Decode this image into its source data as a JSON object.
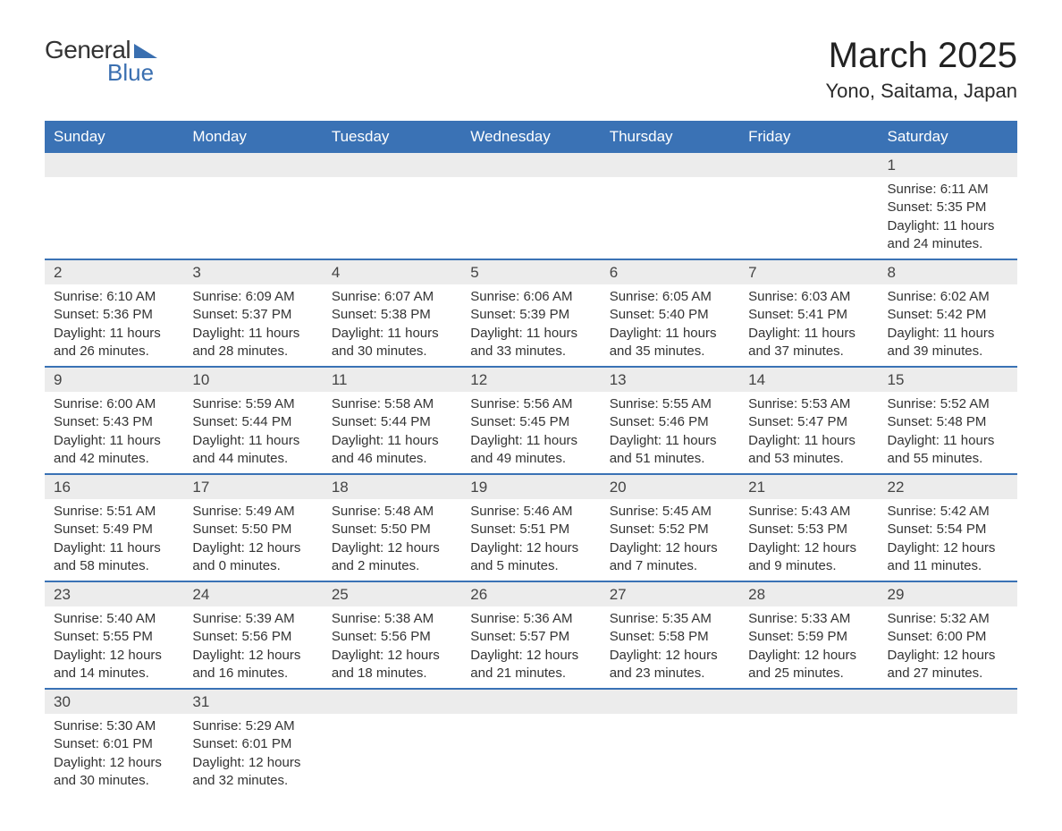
{
  "logo": {
    "line1": "General",
    "line2": "Blue"
  },
  "title": "March 2025",
  "location": "Yono, Saitama, Japan",
  "day_headers": [
    "Sunday",
    "Monday",
    "Tuesday",
    "Wednesday",
    "Thursday",
    "Friday",
    "Saturday"
  ],
  "colors": {
    "header_bg": "#3a72b5",
    "header_text": "#ffffff",
    "day_number_bg": "#ececec",
    "row_border": "#3a72b5",
    "logo_accent": "#3a6fb0",
    "body_text": "#333333"
  },
  "weeks": [
    [
      {
        "n": "",
        "lines": []
      },
      {
        "n": "",
        "lines": []
      },
      {
        "n": "",
        "lines": []
      },
      {
        "n": "",
        "lines": []
      },
      {
        "n": "",
        "lines": []
      },
      {
        "n": "",
        "lines": []
      },
      {
        "n": "1",
        "lines": [
          "Sunrise: 6:11 AM",
          "Sunset: 5:35 PM",
          "Daylight: 11 hours and 24 minutes."
        ]
      }
    ],
    [
      {
        "n": "2",
        "lines": [
          "Sunrise: 6:10 AM",
          "Sunset: 5:36 PM",
          "Daylight: 11 hours and 26 minutes."
        ]
      },
      {
        "n": "3",
        "lines": [
          "Sunrise: 6:09 AM",
          "Sunset: 5:37 PM",
          "Daylight: 11 hours and 28 minutes."
        ]
      },
      {
        "n": "4",
        "lines": [
          "Sunrise: 6:07 AM",
          "Sunset: 5:38 PM",
          "Daylight: 11 hours and 30 minutes."
        ]
      },
      {
        "n": "5",
        "lines": [
          "Sunrise: 6:06 AM",
          "Sunset: 5:39 PM",
          "Daylight: 11 hours and 33 minutes."
        ]
      },
      {
        "n": "6",
        "lines": [
          "Sunrise: 6:05 AM",
          "Sunset: 5:40 PM",
          "Daylight: 11 hours and 35 minutes."
        ]
      },
      {
        "n": "7",
        "lines": [
          "Sunrise: 6:03 AM",
          "Sunset: 5:41 PM",
          "Daylight: 11 hours and 37 minutes."
        ]
      },
      {
        "n": "8",
        "lines": [
          "Sunrise: 6:02 AM",
          "Sunset: 5:42 PM",
          "Daylight: 11 hours and 39 minutes."
        ]
      }
    ],
    [
      {
        "n": "9",
        "lines": [
          "Sunrise: 6:00 AM",
          "Sunset: 5:43 PM",
          "Daylight: 11 hours and 42 minutes."
        ]
      },
      {
        "n": "10",
        "lines": [
          "Sunrise: 5:59 AM",
          "Sunset: 5:44 PM",
          "Daylight: 11 hours and 44 minutes."
        ]
      },
      {
        "n": "11",
        "lines": [
          "Sunrise: 5:58 AM",
          "Sunset: 5:44 PM",
          "Daylight: 11 hours and 46 minutes."
        ]
      },
      {
        "n": "12",
        "lines": [
          "Sunrise: 5:56 AM",
          "Sunset: 5:45 PM",
          "Daylight: 11 hours and 49 minutes."
        ]
      },
      {
        "n": "13",
        "lines": [
          "Sunrise: 5:55 AM",
          "Sunset: 5:46 PM",
          "Daylight: 11 hours and 51 minutes."
        ]
      },
      {
        "n": "14",
        "lines": [
          "Sunrise: 5:53 AM",
          "Sunset: 5:47 PM",
          "Daylight: 11 hours and 53 minutes."
        ]
      },
      {
        "n": "15",
        "lines": [
          "Sunrise: 5:52 AM",
          "Sunset: 5:48 PM",
          "Daylight: 11 hours and 55 minutes."
        ]
      }
    ],
    [
      {
        "n": "16",
        "lines": [
          "Sunrise: 5:51 AM",
          "Sunset: 5:49 PM",
          "Daylight: 11 hours and 58 minutes."
        ]
      },
      {
        "n": "17",
        "lines": [
          "Sunrise: 5:49 AM",
          "Sunset: 5:50 PM",
          "Daylight: 12 hours and 0 minutes."
        ]
      },
      {
        "n": "18",
        "lines": [
          "Sunrise: 5:48 AM",
          "Sunset: 5:50 PM",
          "Daylight: 12 hours and 2 minutes."
        ]
      },
      {
        "n": "19",
        "lines": [
          "Sunrise: 5:46 AM",
          "Sunset: 5:51 PM",
          "Daylight: 12 hours and 5 minutes."
        ]
      },
      {
        "n": "20",
        "lines": [
          "Sunrise: 5:45 AM",
          "Sunset: 5:52 PM",
          "Daylight: 12 hours and 7 minutes."
        ]
      },
      {
        "n": "21",
        "lines": [
          "Sunrise: 5:43 AM",
          "Sunset: 5:53 PM",
          "Daylight: 12 hours and 9 minutes."
        ]
      },
      {
        "n": "22",
        "lines": [
          "Sunrise: 5:42 AM",
          "Sunset: 5:54 PM",
          "Daylight: 12 hours and 11 minutes."
        ]
      }
    ],
    [
      {
        "n": "23",
        "lines": [
          "Sunrise: 5:40 AM",
          "Sunset: 5:55 PM",
          "Daylight: 12 hours and 14 minutes."
        ]
      },
      {
        "n": "24",
        "lines": [
          "Sunrise: 5:39 AM",
          "Sunset: 5:56 PM",
          "Daylight: 12 hours and 16 minutes."
        ]
      },
      {
        "n": "25",
        "lines": [
          "Sunrise: 5:38 AM",
          "Sunset: 5:56 PM",
          "Daylight: 12 hours and 18 minutes."
        ]
      },
      {
        "n": "26",
        "lines": [
          "Sunrise: 5:36 AM",
          "Sunset: 5:57 PM",
          "Daylight: 12 hours and 21 minutes."
        ]
      },
      {
        "n": "27",
        "lines": [
          "Sunrise: 5:35 AM",
          "Sunset: 5:58 PM",
          "Daylight: 12 hours and 23 minutes."
        ]
      },
      {
        "n": "28",
        "lines": [
          "Sunrise: 5:33 AM",
          "Sunset: 5:59 PM",
          "Daylight: 12 hours and 25 minutes."
        ]
      },
      {
        "n": "29",
        "lines": [
          "Sunrise: 5:32 AM",
          "Sunset: 6:00 PM",
          "Daylight: 12 hours and 27 minutes."
        ]
      }
    ],
    [
      {
        "n": "30",
        "lines": [
          "Sunrise: 5:30 AM",
          "Sunset: 6:01 PM",
          "Daylight: 12 hours and 30 minutes."
        ]
      },
      {
        "n": "31",
        "lines": [
          "Sunrise: 5:29 AM",
          "Sunset: 6:01 PM",
          "Daylight: 12 hours and 32 minutes."
        ]
      },
      {
        "n": "",
        "lines": []
      },
      {
        "n": "",
        "lines": []
      },
      {
        "n": "",
        "lines": []
      },
      {
        "n": "",
        "lines": []
      },
      {
        "n": "",
        "lines": []
      }
    ]
  ]
}
